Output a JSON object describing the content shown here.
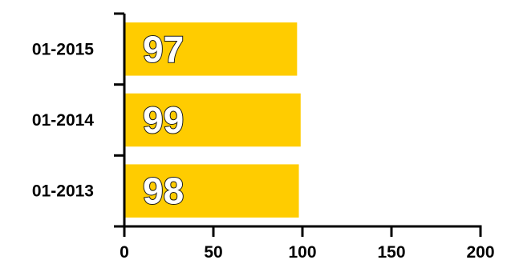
{
  "chart_data": {
    "type": "bar",
    "orientation": "horizontal",
    "categories": [
      "01-2015",
      "01-2014",
      "01-2013"
    ],
    "values": [
      97,
      99,
      98
    ],
    "data_labels": [
      "97",
      "99",
      "98"
    ],
    "title": "",
    "xlabel": "",
    "ylabel": "",
    "xlim": [
      0,
      200
    ],
    "x_ticks": [
      0,
      50,
      100,
      150,
      200
    ],
    "x_tick_labels": [
      "0",
      "50",
      "100",
      "150",
      "200"
    ],
    "grid": false,
    "legend": "none",
    "bar_color": "#FFCC00"
  }
}
